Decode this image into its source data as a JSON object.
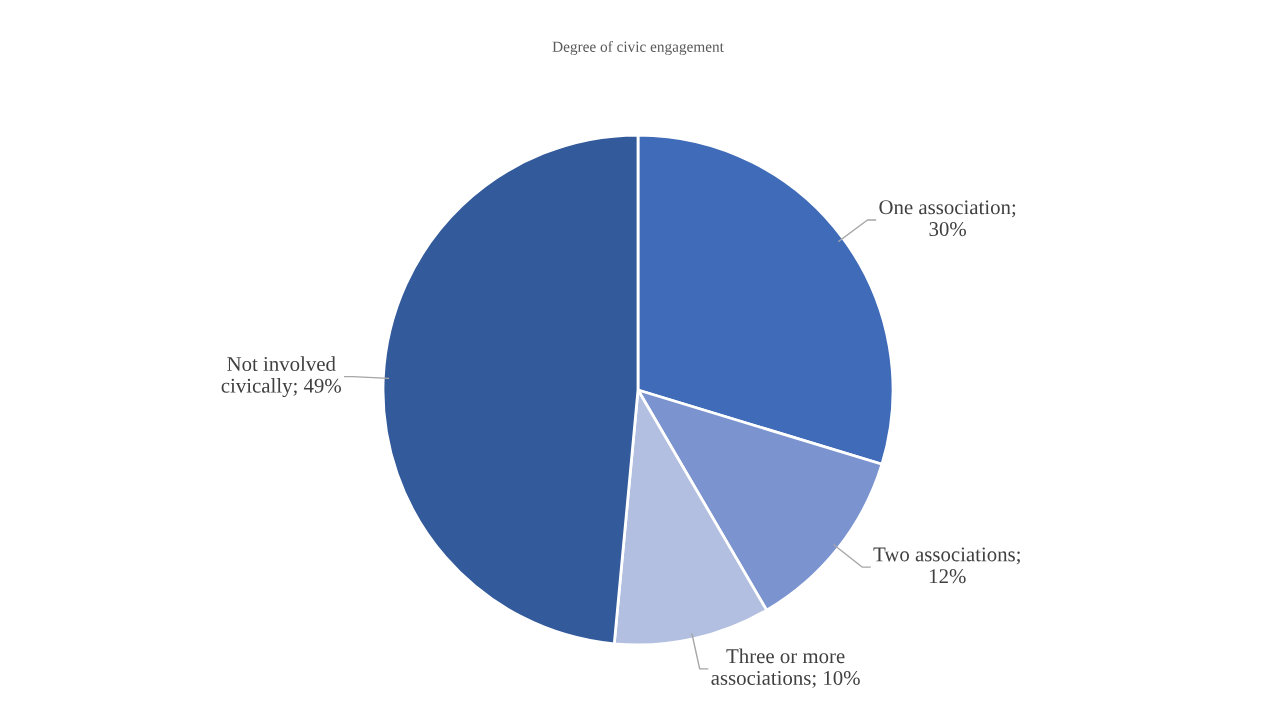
{
  "chart_data": {
    "type": "pie",
    "title": "Degree of civic engagement",
    "categories": [
      "One association; 30%",
      "Two associations; 12%",
      "Three or more associations; 10%",
      "Not involved civically; 49%"
    ],
    "values": [
      30,
      12,
      10,
      49
    ],
    "colors": [
      "#3f6bb8",
      "#7b93cf",
      "#b3bfe0",
      "#335a9a"
    ]
  }
}
